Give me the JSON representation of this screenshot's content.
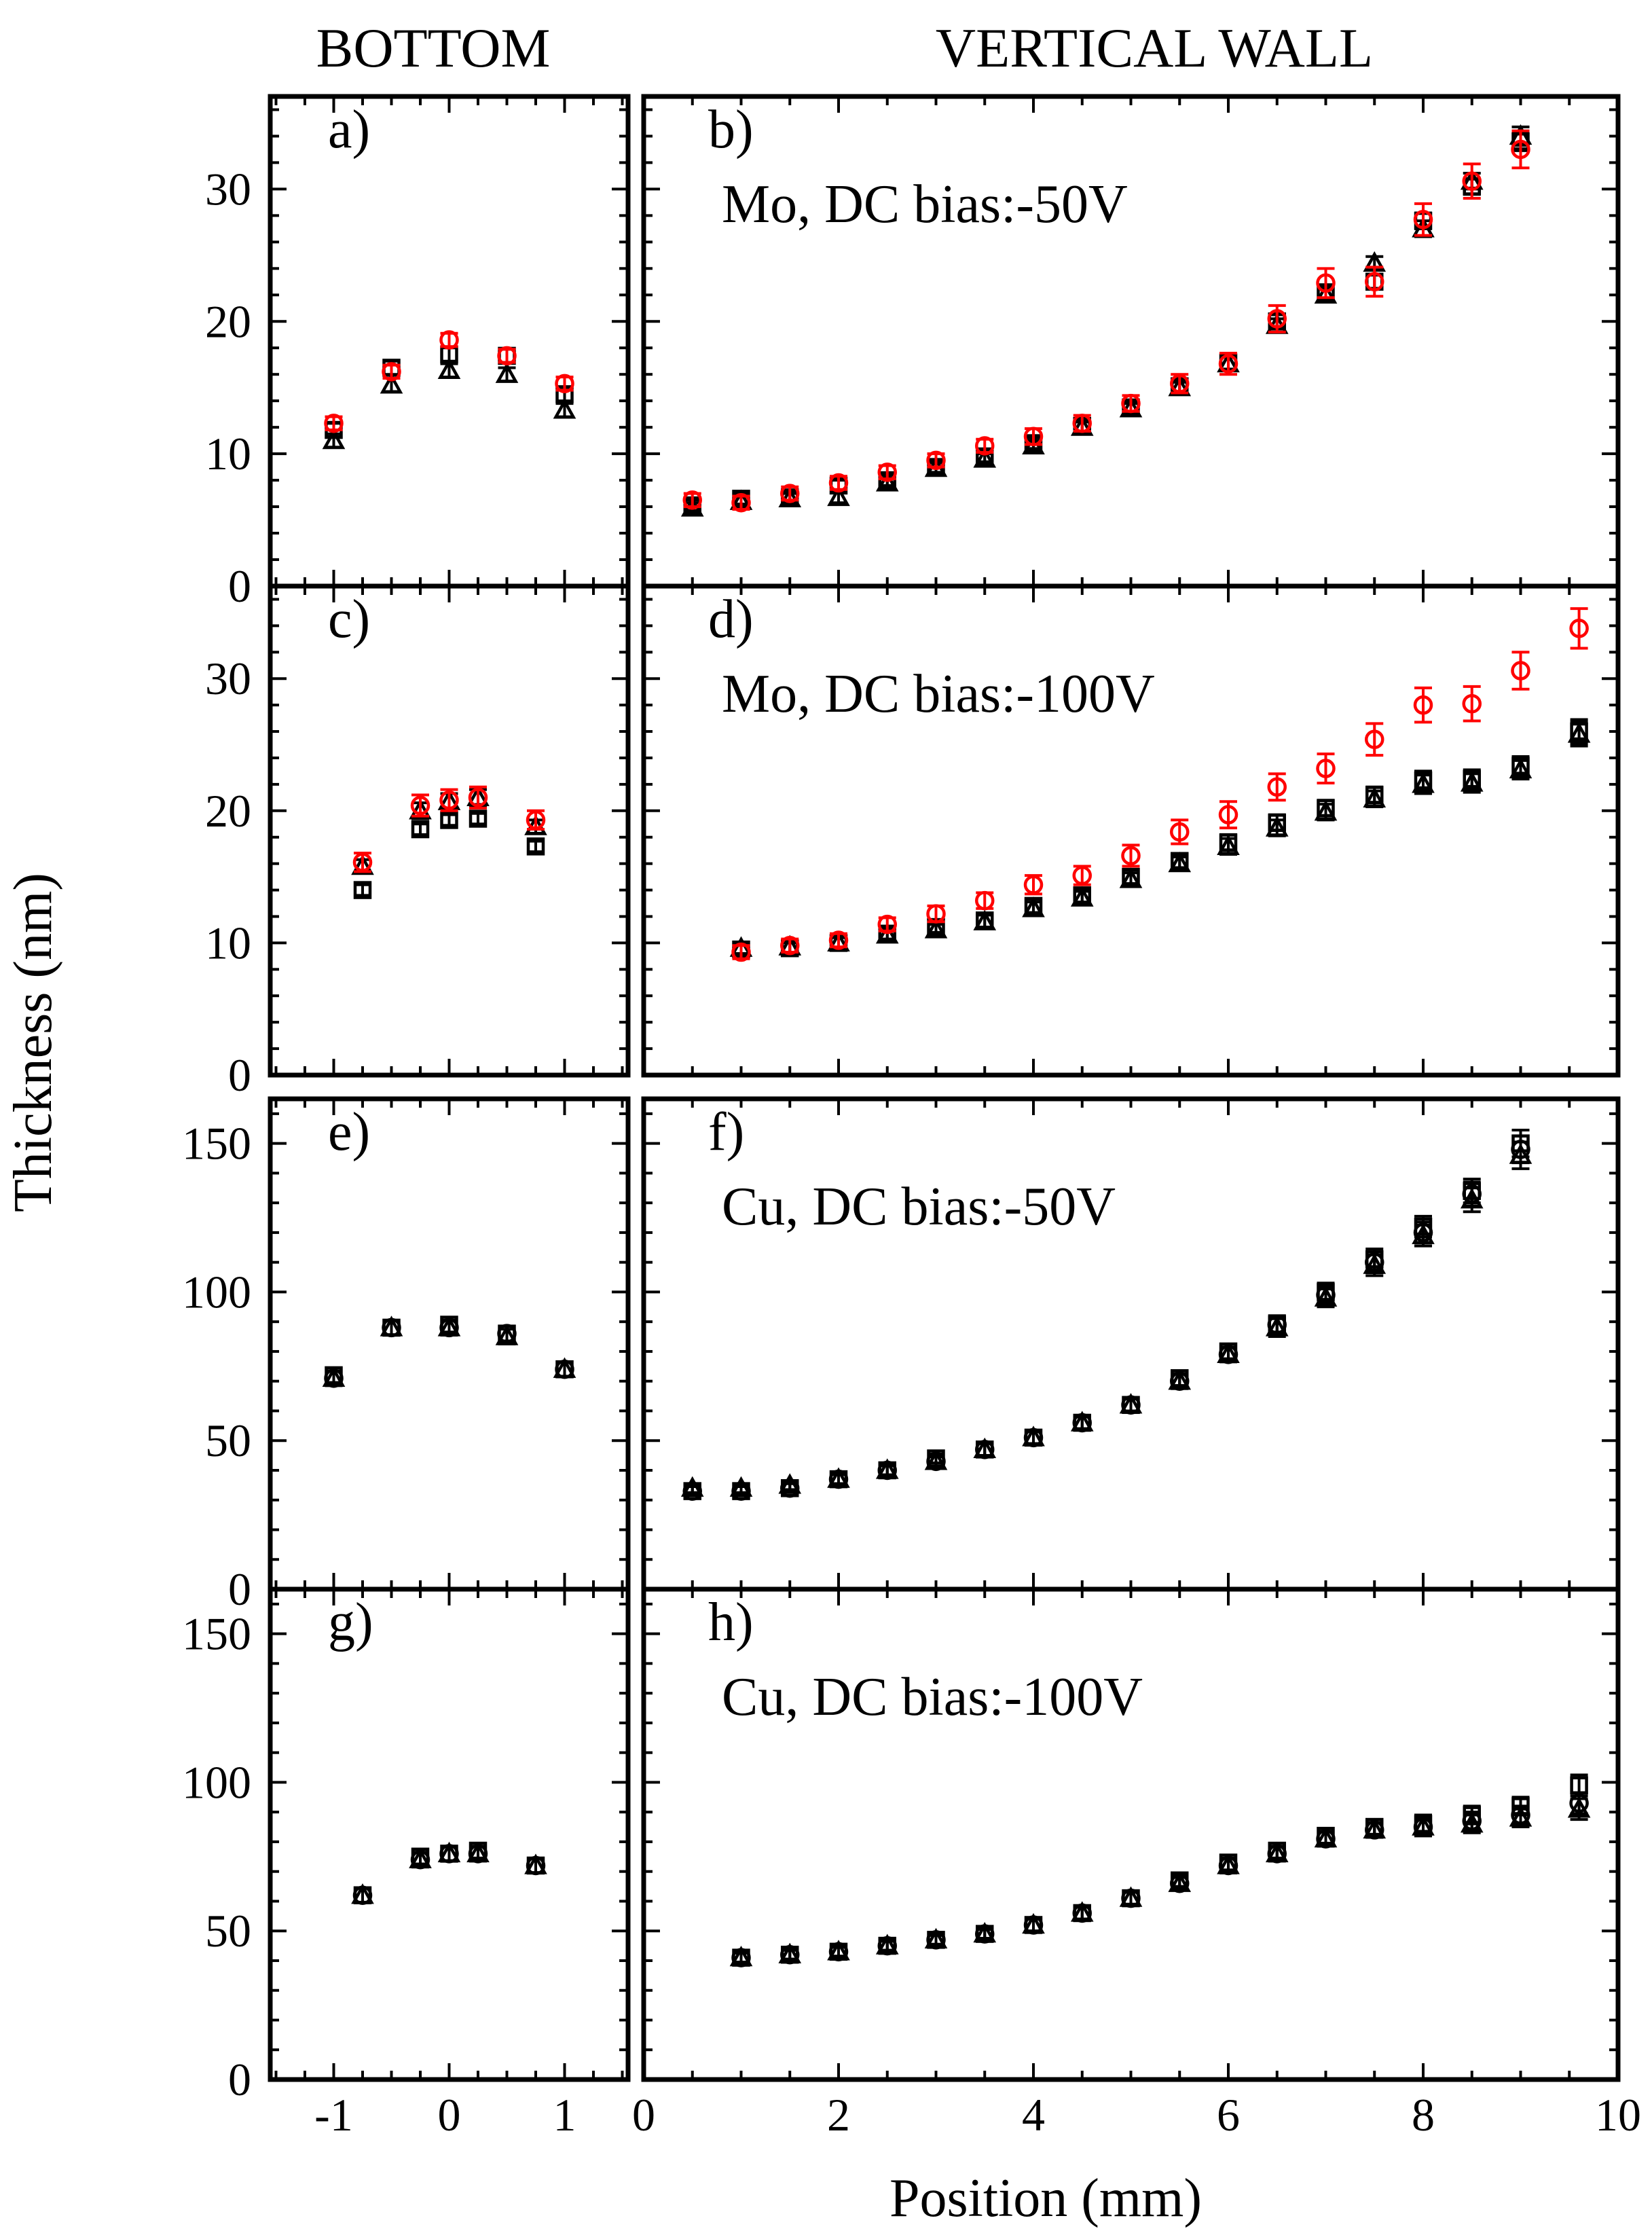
{
  "chart_data": {
    "type": "scatter",
    "column_titles": [
      "BOTTOM",
      "VERTICAL WALL"
    ],
    "ylabel": "Thickness (nm)",
    "xlabel": "Position (mm)",
    "bottom_x": {
      "xlim": [
        -1.55,
        1.55
      ],
      "ticks": [
        -1,
        0,
        1
      ],
      "tick_labels": [
        "-1",
        "0",
        "1"
      ]
    },
    "wall_x": {
      "xlim": [
        0,
        10
      ],
      "ticks": [
        0,
        2,
        4,
        6,
        8,
        10
      ],
      "tick_labels": [
        "0",
        "2",
        "4",
        "6",
        "8",
        "10"
      ]
    },
    "rows": [
      {
        "ylim": [
          0,
          37
        ],
        "ticks": [
          0,
          10,
          20,
          30
        ],
        "tick_labels": [
          "0",
          "10",
          "20",
          "30"
        ]
      },
      {
        "ylim": [
          0,
          37
        ],
        "ticks": [
          0,
          10,
          20,
          30
        ],
        "tick_labels": [
          "0",
          "10",
          "20",
          "30"
        ]
      },
      {
        "ylim": [
          0,
          165
        ],
        "ticks": [
          0,
          50,
          100,
          150
        ],
        "tick_labels": [
          "0",
          "50",
          "100",
          "150"
        ]
      },
      {
        "ylim": [
          0,
          165
        ],
        "ticks": [
          0,
          50,
          100,
          150
        ],
        "tick_labels": [
          "0",
          "50",
          "100",
          "150"
        ]
      }
    ],
    "panels": [
      {
        "id": "a",
        "label": "a)",
        "col": 0,
        "row": 0,
        "annotation": "",
        "x": [
          -1,
          -0.5,
          0,
          0.5,
          1
        ],
        "series": [
          {
            "marker": "triangle",
            "color": "#000000",
            "values": [
              11.0,
              15.2,
              16.3,
              16.0,
              13.3
            ],
            "errors": [
              0.5,
              0.5,
              0.5,
              0.5,
              0.5
            ]
          },
          {
            "marker": "square",
            "color": "#000000",
            "values": [
              11.8,
              16.5,
              17.5,
              17.4,
              14.5
            ],
            "errors": [
              0.5,
              0.5,
              0.5,
              0.5,
              0.5
            ]
          },
          {
            "marker": "circle",
            "color": "#ff0000",
            "values": [
              12.3,
              16.2,
              18.6,
              17.4,
              15.3
            ],
            "errors": [
              0.5,
              0.5,
              0.5,
              0.5,
              0.5
            ]
          }
        ]
      },
      {
        "id": "b",
        "label": "b)",
        "col": 1,
        "row": 0,
        "annotation": "Mo, DC bias:-50V",
        "x": [
          0.5,
          1,
          1.5,
          2,
          2.5,
          3,
          3.5,
          4,
          4.5,
          5,
          5.5,
          6,
          6.5,
          7,
          7.5,
          8,
          8.5,
          9
        ],
        "series": [
          {
            "marker": "triangle",
            "color": "#000000",
            "values": [
              5.9,
              6.4,
              6.6,
              6.7,
              7.8,
              8.9,
              9.6,
              10.6,
              12.0,
              13.4,
              15.0,
              16.8,
              19.7,
              22.0,
              24.4,
              27.0,
              30.6,
              34.0
            ],
            "errors": [
              0.4,
              0.4,
              0.4,
              0.4,
              0.4,
              0.4,
              0.4,
              0.4,
              0.4,
              0.4,
              0.4,
              0.5,
              0.5,
              0.5,
              0.5,
              0.6,
              0.6,
              0.7
            ]
          },
          {
            "marker": "square",
            "color": "#000000",
            "values": [
              6.1,
              6.6,
              6.7,
              7.6,
              8.0,
              9.0,
              9.8,
              10.8,
              12.1,
              13.5,
              15.1,
              16.9,
              20.0,
              22.2,
              23.0,
              27.6,
              30.2,
              33.6
            ],
            "errors": [
              0.4,
              0.4,
              0.4,
              0.4,
              0.4,
              0.4,
              0.4,
              0.4,
              0.4,
              0.4,
              0.4,
              0.5,
              0.5,
              0.5,
              0.5,
              0.6,
              0.6,
              0.7
            ]
          },
          {
            "marker": "circle",
            "color": "#ff0000",
            "values": [
              6.5,
              6.3,
              7.0,
              7.8,
              8.6,
              9.5,
              10.6,
              11.3,
              12.3,
              13.8,
              15.3,
              16.8,
              20.2,
              22.9,
              23.0,
              27.7,
              30.6,
              33.0
            ],
            "errors": [
              0.5,
              0.5,
              0.5,
              0.5,
              0.5,
              0.5,
              0.5,
              0.6,
              0.6,
              0.6,
              0.7,
              0.8,
              1.0,
              1.1,
              1.1,
              1.2,
              1.3,
              1.4
            ]
          }
        ]
      },
      {
        "id": "c",
        "label": "c)",
        "col": 0,
        "row": 1,
        "annotation": "",
        "x": [
          -0.75,
          -0.25,
          0,
          0.25,
          0.75
        ],
        "series": [
          {
            "marker": "triangle",
            "color": "#000000",
            "values": [
              15.8,
              20.0,
              20.7,
              21.0,
              18.8
            ],
            "errors": [
              0.5,
              0.6,
              0.6,
              0.6,
              0.5
            ]
          },
          {
            "marker": "square",
            "color": "#000000",
            "values": [
              14.0,
              18.6,
              19.3,
              19.4,
              17.3
            ],
            "errors": [
              0.4,
              0.4,
              0.4,
              0.4,
              0.4
            ]
          },
          {
            "marker": "circle",
            "color": "#ff0000",
            "values": [
              16.1,
              20.4,
              20.8,
              21.0,
              19.3
            ],
            "errors": [
              0.7,
              0.8,
              0.8,
              0.8,
              0.7
            ]
          }
        ]
      },
      {
        "id": "d",
        "label": "d)",
        "col": 1,
        "row": 1,
        "annotation": "Mo, DC bias:-100V",
        "x": [
          1,
          1.5,
          2,
          2.5,
          3,
          3.5,
          4,
          4.5,
          5,
          5.5,
          6,
          6.5,
          7,
          7.5,
          8,
          8.5,
          9,
          9.6
        ],
        "series": [
          {
            "marker": "triangle",
            "color": "#000000",
            "values": [
              9.6,
              9.7,
              10.0,
              10.6,
              11.0,
              11.6,
              12.6,
              13.4,
              14.8,
              16.0,
              17.3,
              18.7,
              19.9,
              20.9,
              22.0,
              22.1,
              23.1,
              25.8
            ],
            "errors": [
              0.4,
              0.4,
              0.4,
              0.4,
              0.4,
              0.5,
              0.5,
              0.5,
              0.5,
              0.5,
              0.6,
              0.6,
              0.6,
              0.6,
              0.7,
              0.7,
              0.7,
              0.9
            ]
          },
          {
            "marker": "square",
            "color": "#000000",
            "values": [
              9.5,
              9.6,
              10.0,
              10.7,
              11.2,
              11.7,
              12.8,
              13.6,
              15.0,
              16.2,
              17.6,
              19.1,
              20.2,
              21.2,
              22.3,
              22.4,
              23.4,
              26.0
            ],
            "errors": [
              0.4,
              0.4,
              0.4,
              0.4,
              0.4,
              0.5,
              0.5,
              0.5,
              0.5,
              0.5,
              0.6,
              0.6,
              0.6,
              0.6,
              0.7,
              0.7,
              0.7,
              0.9
            ]
          },
          {
            "marker": "circle",
            "color": "#ff0000",
            "values": [
              9.3,
              9.8,
              10.2,
              11.4,
              12.2,
              13.2,
              14.4,
              15.1,
              16.6,
              18.4,
              19.7,
              21.8,
              23.2,
              25.4,
              28.0,
              28.1,
              30.6,
              33.8
            ],
            "errors": [
              0.5,
              0.5,
              0.5,
              0.5,
              0.6,
              0.6,
              0.7,
              0.7,
              0.8,
              0.9,
              1.0,
              1.0,
              1.1,
              1.2,
              1.3,
              1.3,
              1.4,
              1.5
            ]
          }
        ]
      },
      {
        "id": "e",
        "label": "e)",
        "col": 0,
        "row": 2,
        "annotation": "",
        "x": [
          -1,
          -0.5,
          0,
          0.5,
          1
        ],
        "series": [
          {
            "marker": "triangle",
            "color": "#000000",
            "values": [
              71,
              88,
              88,
              85,
              74
            ],
            "errors": [
              2.5,
              2.5,
              2.5,
              2.5,
              2.5
            ]
          },
          {
            "marker": "square",
            "color": "#000000",
            "values": [
              72,
              88,
              89,
              86,
              74
            ],
            "errors": [
              2.5,
              2.5,
              2.5,
              2.5,
              2.5
            ]
          },
          {
            "marker": "circle",
            "color": "#000000",
            "values": [
              71,
              88,
              88,
              86,
              74
            ],
            "errors": [
              2.5,
              2.5,
              2.5,
              2.5,
              2.5
            ]
          }
        ]
      },
      {
        "id": "f",
        "label": "f)",
        "col": 1,
        "row": 2,
        "annotation": "Cu, DC bias:-50V",
        "x": [
          0.5,
          1,
          1.5,
          2,
          2.5,
          3,
          3.5,
          4,
          4.5,
          5,
          5.5,
          6,
          6.5,
          7,
          7.5,
          8,
          8.5,
          9
        ],
        "series": [
          {
            "marker": "triangle",
            "color": "#000000",
            "values": [
              34,
              34,
              35,
              37,
              40,
              43,
              47,
              51,
              56,
              62,
              70,
              79,
              88,
              98,
              109,
              119,
              131,
              146
            ],
            "errors": [
              1.5,
              1.5,
              1.5,
              1.5,
              1.5,
              1.5,
              2,
              2,
              2,
              2,
              2.5,
              2.5,
              3,
              3,
              3.5,
              3.5,
              4,
              4.5
            ]
          },
          {
            "marker": "square",
            "color": "#000000",
            "values": [
              33,
              33,
              34,
              37,
              40,
              44,
              47,
              51,
              56,
              62,
              71,
              80,
              89,
              100,
              111,
              122,
              134,
              150
            ],
            "errors": [
              1.5,
              1.5,
              1.5,
              1.5,
              1.5,
              1.5,
              2,
              2,
              2,
              2,
              2.5,
              2.5,
              3,
              3,
              3.5,
              3.5,
              4,
              4.5
            ]
          },
          {
            "marker": "circle",
            "color": "#000000",
            "values": [
              33,
              33,
              34,
              37,
              40,
              43,
              47,
              51,
              56,
              62,
              70,
              79,
              89,
              99,
              110,
              120,
              133,
              148
            ],
            "errors": [
              1.5,
              1.5,
              1.5,
              1.5,
              1.5,
              1.5,
              2,
              2,
              2,
              2,
              2.5,
              2.5,
              3,
              3,
              3.5,
              3.5,
              4,
              4.5
            ]
          }
        ]
      },
      {
        "id": "g",
        "label": "g)",
        "col": 0,
        "row": 3,
        "annotation": "",
        "x": [
          -0.75,
          -0.25,
          0,
          0.25,
          0.75
        ],
        "series": [
          {
            "marker": "triangle",
            "color": "#000000",
            "values": [
              62,
              74,
              76,
              76,
              72
            ],
            "errors": [
              2.5,
              2.5,
              2.5,
              2.5,
              2.5
            ]
          },
          {
            "marker": "square",
            "color": "#000000",
            "values": [
              62,
              75,
              76,
              77,
              72
            ],
            "errors": [
              2.5,
              2.5,
              2.5,
              2.5,
              2.5
            ]
          },
          {
            "marker": "circle",
            "color": "#000000",
            "values": [
              62,
              74,
              76,
              76,
              72
            ],
            "errors": [
              2.5,
              2.5,
              2.5,
              2.5,
              2.5
            ]
          }
        ]
      },
      {
        "id": "h",
        "label": "h)",
        "col": 1,
        "row": 3,
        "annotation": "Cu, DC bias:-100V",
        "x": [
          1,
          1.5,
          2,
          2.5,
          3,
          3.5,
          4,
          4.5,
          5,
          5.5,
          6,
          6.5,
          7,
          7.5,
          8,
          8.5,
          9,
          9.6
        ],
        "series": [
          {
            "marker": "triangle",
            "color": "#000000",
            "values": [
              41,
              42,
              43,
              45,
              47,
              49,
              52,
              56,
              61,
              66,
              72,
              76,
              81,
              84,
              85,
              86,
              88,
              91
            ],
            "errors": [
              1.5,
              1.5,
              1.5,
              1.5,
              1.5,
              1.5,
              2,
              2,
              2,
              2,
              2.5,
              2.5,
              2.5,
              2.5,
              3,
              3,
              3,
              3.5
            ]
          },
          {
            "marker": "square",
            "color": "#000000",
            "values": [
              41,
              42,
              43,
              45,
              47,
              49,
              52,
              56,
              61,
              67,
              73,
              77,
              82,
              85,
              86,
              89,
              92,
              99
            ],
            "errors": [
              1.5,
              1.5,
              1.5,
              1.5,
              1.5,
              1.5,
              2,
              2,
              2,
              2,
              2.5,
              2.5,
              2.5,
              2.5,
              3,
              3,
              3,
              3.5
            ]
          },
          {
            "marker": "circle",
            "color": "#000000",
            "values": [
              41,
              42,
              43,
              45,
              47,
              49,
              52,
              56,
              61,
              66,
              72,
              76,
              81,
              84,
              85,
              87,
              89,
              93
            ],
            "errors": [
              1.5,
              1.5,
              1.5,
              1.5,
              1.5,
              1.5,
              2,
              2,
              2,
              2,
              2.5,
              2.5,
              2.5,
              2.5,
              3,
              3,
              3,
              3.5
            ]
          }
        ]
      }
    ]
  }
}
